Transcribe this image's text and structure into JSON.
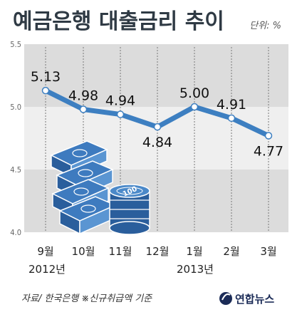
{
  "title": "예금은행 대출금리 추이",
  "unit": "단위: %",
  "source": "자료/ 한국은행  ※신규취급액 기준",
  "brand": "연합뉴스",
  "colors": {
    "line": "#3d7fc1",
    "band_dark": "#dcdcdc",
    "band_light": "#efefef",
    "background": "#ffffff"
  },
  "chart_data": {
    "type": "line",
    "categories": [
      "9월",
      "10월",
      "11월",
      "12월",
      "1월",
      "2월",
      "3월"
    ],
    "year_labels": [
      "2012년",
      "2013년"
    ],
    "series": [
      {
        "values": [
          5.13,
          4.98,
          4.94,
          4.84,
          5.0,
          4.91,
          4.77
        ]
      }
    ],
    "data_labels": [
      "5.13",
      "4.98",
      "4.94",
      "4.84",
      "5.00",
      "4.91",
      "4.77"
    ],
    "yticks": [
      "5.5",
      "5.0",
      "4.5",
      "4.0"
    ],
    "ylim": [
      4.0,
      5.5
    ],
    "title": "예금은행 대출금리 추이",
    "xlabel": "",
    "ylabel": "",
    "grid": true
  }
}
